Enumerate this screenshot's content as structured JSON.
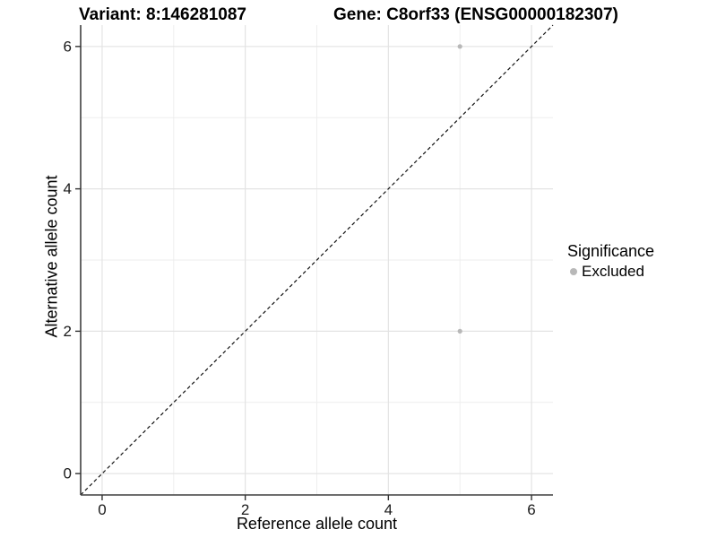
{
  "header": {
    "variant_label": "Variant: 8:146281087",
    "gene_label": "Gene: C8orf33 (ENSG00000182307)"
  },
  "chart_data": {
    "type": "scatter",
    "xlabel": "Reference allele count",
    "ylabel": "Alternative allele count",
    "xlim": [
      -0.3,
      6.3
    ],
    "ylim": [
      -0.3,
      6.3
    ],
    "x_ticks": [
      0,
      2,
      4,
      6
    ],
    "y_ticks": [
      0,
      2,
      4,
      6
    ],
    "x_minor_ticks": [
      1,
      3,
      5
    ],
    "y_minor_ticks": [
      1,
      3,
      5
    ],
    "grid": "major+minor",
    "reference_line": {
      "kind": "identity",
      "slope": 1,
      "intercept": 0,
      "style": "dashed",
      "color": "#111111"
    },
    "series": [
      {
        "name": "Excluded",
        "color": "#b8b8b8",
        "point_radius": 2.6,
        "points": [
          [
            5,
            6
          ],
          [
            5,
            2
          ]
        ]
      }
    ],
    "legend": {
      "title": "Significance",
      "position": "right",
      "items": [
        {
          "label": "Excluded",
          "color": "#b8b8b8"
        }
      ]
    }
  },
  "colors": {
    "background": "#ffffff",
    "grid_major": "#e3e3e3",
    "grid_minor": "#eeeeee",
    "axis_line": "#3f3f3f",
    "tick_mark": "#333333",
    "tick_label": "#1a1a1a"
  }
}
